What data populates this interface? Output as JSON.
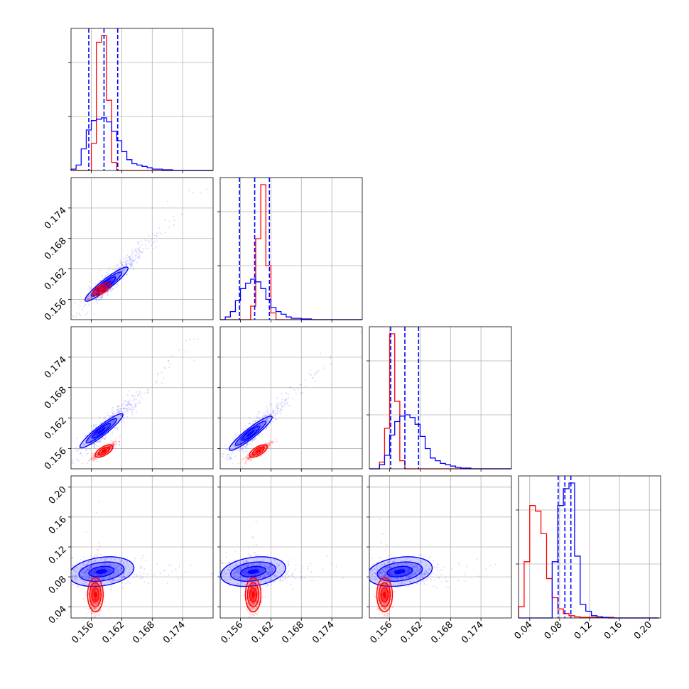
{
  "chart_data": {
    "type": "corner",
    "grid": true,
    "colors": {
      "red_model": "#ff0000",
      "blue_model": "#0000ff",
      "grid": "#b0b0b0"
    },
    "parameters": [
      {
        "id": "p1",
        "range": [
          0.152,
          0.18
        ],
        "ticks": [
          0.156,
          0.162,
          0.168,
          0.174
        ],
        "tick_labels": [
          "0.156",
          "0.162",
          "0.168",
          "0.174"
        ]
      },
      {
        "id": "p2",
        "range": [
          0.152,
          0.18
        ],
        "ticks": [
          0.156,
          0.162,
          0.168,
          0.174
        ],
        "tick_labels": [
          "0.156",
          "0.162",
          "0.168",
          "0.174"
        ]
      },
      {
        "id": "p3",
        "range": [
          0.152,
          0.18
        ],
        "ticks": [
          0.156,
          0.162,
          0.168,
          0.174
        ],
        "tick_labels": [
          "0.156",
          "0.162",
          "0.168",
          "0.174"
        ]
      },
      {
        "id": "p4",
        "range": [
          0.025,
          0.215
        ],
        "ticks": [
          0.04,
          0.08,
          0.12,
          0.16,
          0.2
        ],
        "tick_labels": [
          "0.04",
          "0.08",
          "0.12",
          "0.16",
          "0.20"
        ]
      }
    ],
    "marginals": [
      {
        "param": 0,
        "bin_edges": [
          0.152,
          0.153,
          0.154,
          0.155,
          0.156,
          0.157,
          0.158,
          0.159,
          0.16,
          0.161,
          0.162,
          0.163,
          0.164,
          0.165,
          0.166,
          0.167,
          0.168,
          0.169,
          0.17,
          0.171,
          0.172,
          0.173,
          0.174,
          0.175,
          0.176,
          0.177,
          0.178,
          0.179,
          0.18
        ],
        "series": [
          {
            "model": "red",
            "counts": [
              0,
              0,
              0,
              0,
              20,
              95,
              100,
              52,
              6,
              0,
              0,
              0,
              0,
              0,
              0,
              0,
              0,
              0,
              0,
              0,
              0,
              0,
              0,
              0,
              0,
              0,
              0,
              0
            ]
          },
          {
            "model": "blue",
            "counts": [
              1,
              4,
              16,
              30,
              37,
              38,
              39,
              36,
              29,
              22,
              14,
              8,
              5,
              4,
              3,
              2,
              1,
              1,
              0.5,
              0.5,
              0,
              0,
              0,
              0,
              0,
              0,
              0,
              0
            ]
          }
        ],
        "quantiles": [
          0.1555,
          0.1585,
          0.1612
        ]
      },
      {
        "param": 1,
        "bin_edges": [
          0.152,
          0.153,
          0.154,
          0.155,
          0.156,
          0.157,
          0.158,
          0.159,
          0.16,
          0.161,
          0.162,
          0.163,
          0.164,
          0.165,
          0.166,
          0.167,
          0.168,
          0.169,
          0.17,
          0.171,
          0.172,
          0.173,
          0.174,
          0.175,
          0.176,
          0.177,
          0.178,
          0.179,
          0.18
        ],
        "series": [
          {
            "model": "red",
            "counts": [
              0,
              0,
              0,
              0,
              0,
              0,
              10,
              60,
              100,
              40,
              5,
              0,
              0,
              0,
              0,
              0,
              0,
              0,
              0,
              0,
              0,
              0,
              0,
              0,
              0,
              0,
              0,
              0
            ]
          },
          {
            "model": "blue",
            "counts": [
              0,
              2,
              6,
              14,
              23,
              27,
              30,
              28,
              23,
              15,
              9,
              6,
              4,
              2,
              1,
              1,
              0.5,
              0.5,
              0,
              0,
              0,
              0,
              0,
              0,
              0,
              0,
              0,
              0
            ]
          }
        ],
        "quantiles": [
          0.1558,
          0.1588,
          0.1617
        ]
      },
      {
        "param": 2,
        "bin_edges": [
          0.152,
          0.153,
          0.154,
          0.155,
          0.156,
          0.157,
          0.158,
          0.159,
          0.16,
          0.161,
          0.162,
          0.163,
          0.164,
          0.165,
          0.166,
          0.167,
          0.168,
          0.169,
          0.17,
          0.171,
          0.172,
          0.173,
          0.174,
          0.175,
          0.176,
          0.177,
          0.178,
          0.179,
          0.18
        ],
        "series": [
          {
            "model": "red",
            "counts": [
              0,
              0,
              5,
              30,
              100,
              50,
              6,
              0,
              0,
              0,
              0,
              0,
              0,
              0,
              0,
              0,
              0,
              0,
              0,
              0,
              0,
              0,
              0,
              0,
              0,
              0,
              0,
              0
            ]
          },
          {
            "model": "blue",
            "counts": [
              0,
              0,
              3,
              10,
              25,
              35,
              39,
              40,
              38,
              33,
              24,
              15,
              8,
              6,
              4,
              3,
              2,
              1,
              0.5,
              0.5,
              0,
              0,
              0,
              0,
              0,
              0,
              0,
              0
            ]
          }
        ],
        "quantiles": [
          0.1562,
          0.159,
          0.1617
        ]
      },
      {
        "param": 3,
        "bin_edges": [
          0.025,
          0.0325,
          0.04,
          0.0475,
          0.055,
          0.0625,
          0.07,
          0.0775,
          0.085,
          0.0925,
          0.1,
          0.1075,
          0.115,
          0.1225,
          0.13,
          0.1375,
          0.145,
          0.1525,
          0.16,
          0.1675,
          0.175,
          0.1825,
          0.19,
          0.1975,
          0.205,
          0.2125
        ],
        "series": [
          {
            "model": "red",
            "counts": [
              10,
              50,
              100,
              95,
              75,
              35,
              18,
              8,
              4,
              2,
              1,
              0.5,
              0.5,
              0.5,
              0.5,
              0.5,
              0.5,
              0,
              0,
              0,
              0,
              0,
              0,
              0,
              0
            ]
          },
          {
            "model": "blue",
            "counts": [
              0,
              0,
              0,
              0,
              0,
              0,
              50,
              100,
              115,
              120,
              55,
              12,
              6,
              2,
              1,
              0.5,
              0,
              0,
              0,
              0,
              0,
              0,
              0,
              0,
              0
            ]
          }
        ],
        "quantiles": [
          0.078,
          0.087,
          0.095
        ]
      }
    ],
    "joint_2d": [
      {
        "row": 1,
        "col": 0,
        "blue_center": [
          0.159,
          0.159
        ],
        "red_center": [
          0.158,
          0.158
        ]
      },
      {
        "row": 2,
        "col": 0,
        "blue_center": [
          0.158,
          0.1595
        ],
        "red_center": [
          0.1585,
          0.1555
        ]
      },
      {
        "row": 2,
        "col": 1,
        "blue_center": [
          0.158,
          0.159
        ],
        "red_center": [
          0.1595,
          0.1555
        ]
      },
      {
        "row": 3,
        "col": 0,
        "blue_center": [
          0.158,
          0.087
        ],
        "red_center": [
          0.1568,
          0.056
        ]
      },
      {
        "row": 3,
        "col": 1,
        "blue_center": [
          0.1585,
          0.087
        ],
        "red_center": [
          0.1585,
          0.056
        ]
      },
      {
        "row": 3,
        "col": 2,
        "blue_center": [
          0.158,
          0.087
        ],
        "red_center": [
          0.155,
          0.056
        ]
      }
    ]
  }
}
